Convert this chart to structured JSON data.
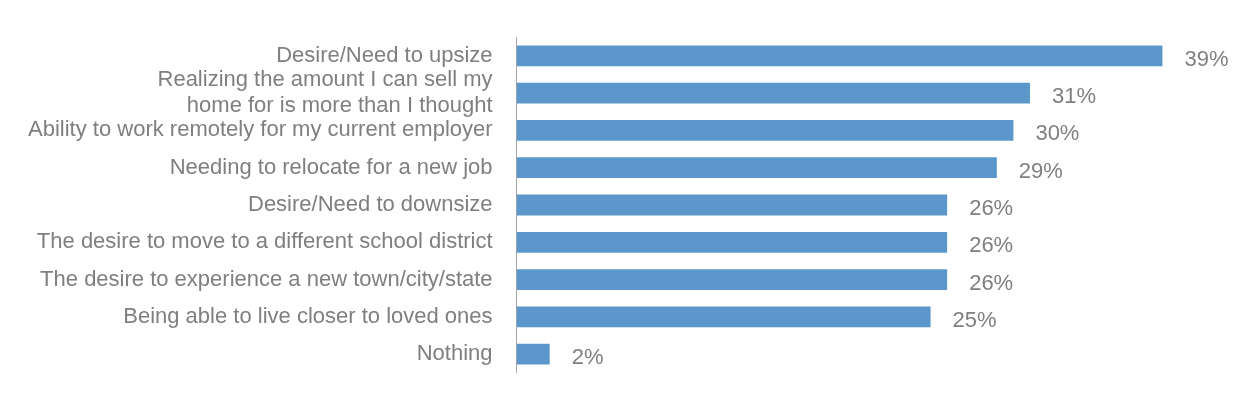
{
  "chart_data": {
    "type": "bar",
    "orientation": "horizontal",
    "categories": [
      "Desire/Need to upsize",
      "Realizing the amount I can sell my home for is more than I thought",
      "Ability to work remotely for my current employer",
      "Needing to relocate for a new job",
      "Desire/Need to downsize",
      "The desire to move to a different school district",
      "The desire to experience a new town/city/state",
      "Being able to live closer to loved ones",
      "Nothing"
    ],
    "values": [
      39,
      31,
      30,
      29,
      26,
      26,
      26,
      25,
      2
    ],
    "value_labels": [
      "39%",
      "31%",
      "30%",
      "29%",
      "26%",
      "26%",
      "26%",
      "25%",
      "2%"
    ],
    "color": "#5b97cb",
    "grid": false,
    "legend": false,
    "tick_labels": "y"
  }
}
